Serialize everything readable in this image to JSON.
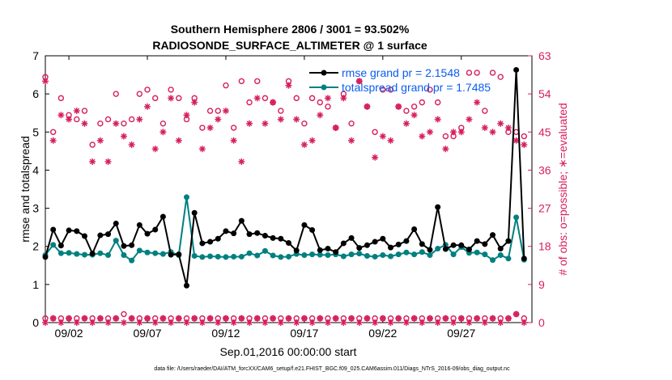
{
  "chart_data": {
    "type": "line",
    "title_line1": "Southern Hemisphere 2806 / 3001 = 93.502%",
    "title_line2": "RADIOSONDE_SURFACE_ALTIMETER @ 1 surface",
    "xlabel": "Sep.01,2016 00:00:00 start",
    "ylabel_left": "rmse and totalspread",
    "ylabel_right": "# of obs: o=possible; ∗=evaluated",
    "footnote": "data file: /Users/raeder/DAI/ATM_forcXX/CAM6_setup/f.e21.FHIST_BGC.f09_025.CAM6assim.011/Diags_NTrS_2016-09/obs_diag_output.nc",
    "xlim": [
      0.5,
      31.5
    ],
    "ylim_left": [
      0,
      7
    ],
    "ylim_right": [
      0,
      63
    ],
    "x_ticks": [
      2,
      7,
      12,
      17,
      22,
      27
    ],
    "x_tick_labels": [
      "09/02",
      "09/07",
      "09/12",
      "09/17",
      "09/22",
      "09/27"
    ],
    "left_ticks": [
      0,
      1,
      2,
      3,
      4,
      5,
      6,
      7
    ],
    "left_tick_labels": [
      "0",
      "1",
      "2",
      "3",
      "4",
      "5",
      "6",
      "7"
    ],
    "right_ticks": [
      0,
      9,
      18,
      27,
      36,
      45,
      54,
      63
    ],
    "right_tick_labels": [
      "0",
      "9",
      "18",
      "27",
      "36",
      "45",
      "54",
      "63"
    ],
    "x": [
      0.5,
      1,
      1.5,
      2,
      2.5,
      3,
      3.5,
      4,
      4.5,
      5,
      5.5,
      6,
      6.5,
      7,
      7.5,
      8,
      8.5,
      9,
      9.5,
      10,
      10.5,
      11,
      11.5,
      12,
      12.5,
      13,
      13.5,
      14,
      14.5,
      15,
      15.5,
      16,
      16.5,
      17,
      17.5,
      18,
      18.5,
      19,
      19.5,
      20,
      20.5,
      21,
      21.5,
      22,
      22.5,
      23,
      23.5,
      24,
      24.5,
      25,
      25.5,
      26,
      26.5,
      27,
      27.5,
      28,
      28.5,
      29,
      29.5,
      30,
      30.5,
      31
    ],
    "series": [
      {
        "name": "rmse",
        "legend": "rmse grand pr = 2.1548",
        "color": "#000000",
        "values": [
          1.72,
          2.44,
          2.02,
          2.42,
          2.4,
          2.27,
          1.81,
          2.29,
          2.32,
          2.6,
          2.01,
          2.03,
          2.56,
          2.33,
          2.44,
          2.78,
          1.78,
          1.79,
          0.97,
          2.88,
          2.08,
          2.12,
          2.2,
          2.4,
          2.34,
          2.67,
          2.32,
          2.35,
          2.28,
          2.22,
          2.2,
          2.09,
          1.89,
          2.56,
          2.43,
          1.9,
          1.94,
          1.85,
          2.08,
          2.22,
          1.96,
          2.03,
          2.12,
          2.2,
          1.97,
          2.05,
          2.14,
          2.45,
          2.06,
          1.91,
          3.03,
          1.93,
          2.03,
          2.03,
          1.92,
          2.14,
          2.06,
          2.3,
          1.94,
          2.14,
          6.63,
          1.68
        ]
      },
      {
        "name": "totalspread",
        "legend": "totalspread grand pr = 1.7485",
        "color": "#008080",
        "values": [
          1.77,
          2.04,
          1.82,
          1.83,
          1.8,
          1.78,
          1.78,
          1.82,
          1.77,
          2.15,
          1.77,
          1.63,
          1.89,
          1.84,
          1.82,
          1.8,
          1.85,
          1.77,
          3.29,
          1.75,
          1.72,
          1.74,
          1.73,
          1.72,
          1.73,
          1.73,
          1.82,
          1.76,
          1.88,
          1.76,
          1.72,
          1.73,
          1.8,
          1.77,
          1.79,
          1.78,
          1.77,
          1.79,
          1.74,
          1.79,
          1.81,
          1.75,
          1.73,
          1.77,
          1.74,
          1.79,
          1.84,
          1.79,
          1.85,
          1.77,
          1.94,
          2.04,
          1.79,
          1.98,
          1.83,
          1.84,
          1.79,
          1.64,
          1.77,
          1.68,
          2.76,
          1.65
        ]
      },
      {
        "name": "obs_possible",
        "marker": "o",
        "color": "#d61e5c",
        "values": [
          58,
          45,
          53,
          49,
          48,
          50,
          42,
          47,
          48,
          54,
          47,
          48,
          54,
          55,
          53,
          47,
          55,
          53,
          48,
          53,
          46,
          50,
          50,
          56,
          46,
          57,
          52,
          57,
          53,
          52,
          50,
          57,
          53,
          47,
          53,
          52,
          51,
          46,
          54,
          47,
          57,
          51,
          45,
          55,
          55,
          51,
          50,
          51,
          52,
          55,
          52,
          44,
          44,
          46,
          59,
          59,
          50,
          59,
          58,
          45,
          45,
          44
        ]
      },
      {
        "name": "obs_evaluated",
        "marker": "*",
        "color": "#d61e5c",
        "values": [
          57,
          43,
          49,
          48,
          50,
          47,
          38,
          43,
          38,
          47,
          44,
          42,
          48,
          51,
          41,
          45,
          53,
          43,
          49,
          52,
          41,
          46,
          48,
          50,
          43,
          38,
          47,
          53,
          47,
          52,
          48,
          56,
          48,
          42,
          43,
          49,
          53,
          46,
          53,
          43,
          57,
          51,
          39,
          44,
          43,
          51,
          47,
          49,
          44,
          45,
          48,
          41,
          45,
          45,
          48,
          52,
          46,
          45,
          47,
          46,
          43,
          42
        ]
      },
      {
        "name": "obs_bottom_possible",
        "marker": "o",
        "color": "#d61e5c",
        "values": [
          1,
          1,
          1,
          1,
          1,
          1,
          1,
          1,
          1,
          1,
          2,
          1,
          1,
          1,
          1,
          1,
          1,
          1,
          1,
          1,
          1,
          1,
          1,
          1,
          1,
          1,
          1,
          1,
          1,
          1,
          1,
          1,
          1,
          1,
          1,
          1,
          1,
          1,
          1,
          1,
          1,
          1,
          1,
          1,
          1,
          1,
          1,
          1,
          1,
          1,
          1,
          1,
          1,
          1,
          1,
          1,
          1,
          1,
          1,
          1,
          2,
          1
        ]
      },
      {
        "name": "obs_bottom_evaluated",
        "marker": "*",
        "color": "#d61e5c",
        "values": [
          0,
          1,
          0,
          1,
          0,
          1,
          0,
          1,
          0,
          1,
          0,
          1,
          0,
          1,
          0,
          1,
          0,
          1,
          0,
          1,
          0,
          1,
          0,
          1,
          0,
          1,
          0,
          1,
          0,
          1,
          0,
          1,
          0,
          1,
          0,
          1,
          0,
          1,
          0,
          1,
          0,
          1,
          0,
          1,
          0,
          1,
          0,
          1,
          0,
          1,
          0,
          1,
          0,
          1,
          0,
          1,
          0,
          1,
          0,
          1,
          2,
          0
        ]
      }
    ]
  }
}
